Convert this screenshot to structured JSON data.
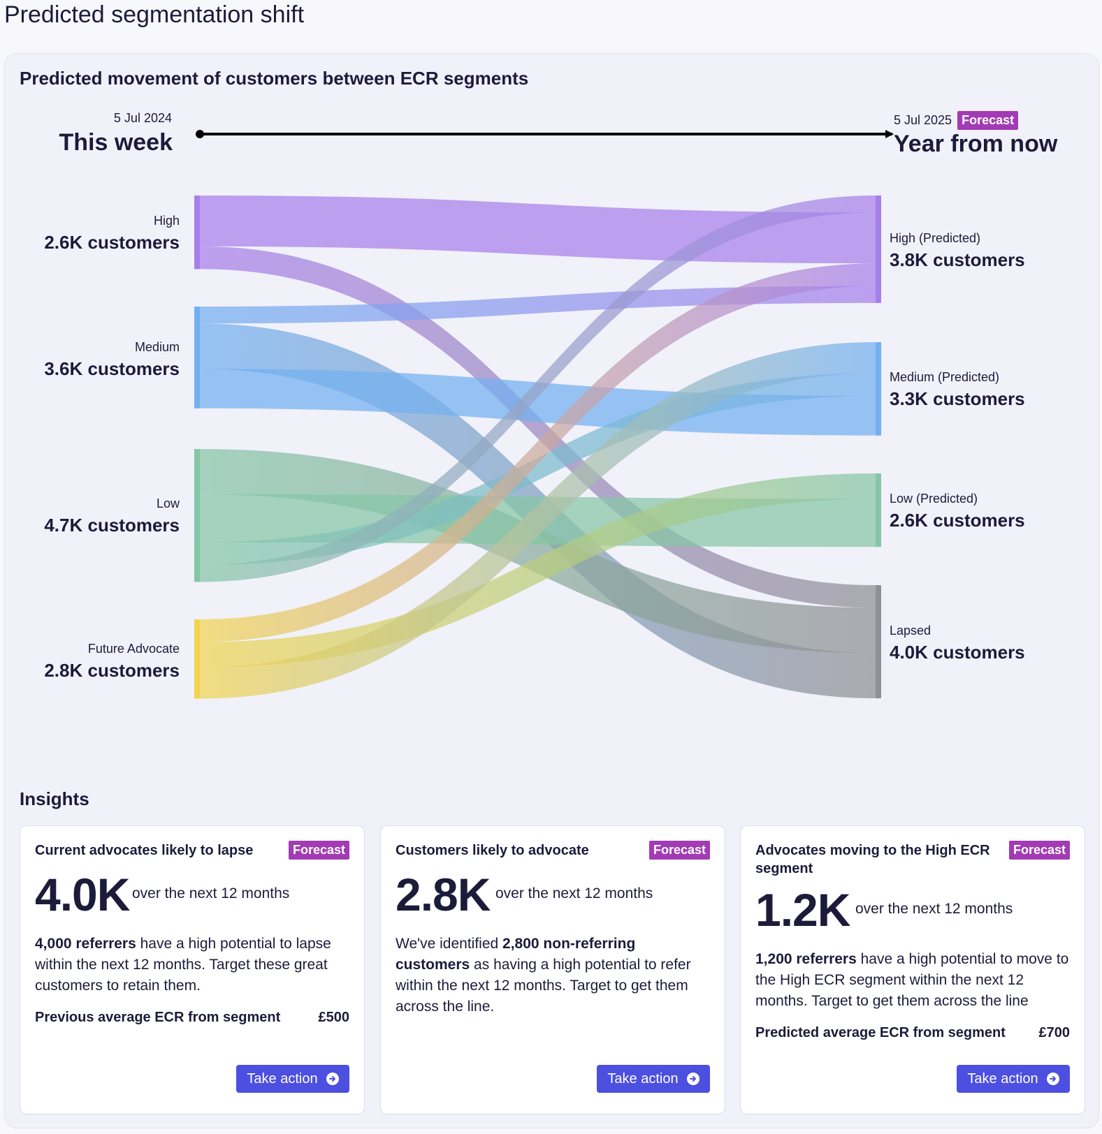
{
  "page": {
    "title": "Predicted segmentation shift"
  },
  "card": {
    "heading": "Predicted movement of customers between ECR segments"
  },
  "timeline": {
    "start_date": "5 Jul 2024",
    "start_label": "This week",
    "end_date": "5 Jul 2025",
    "end_badge": "Forecast",
    "end_label": "Year from now"
  },
  "colors": {
    "high": "#a77fea",
    "medium": "#73b0f0",
    "low": "#86c6a6",
    "future_advocate": "#f1d452",
    "lapsed": "#8f9094",
    "forecast_badge": "#a23bb4",
    "button": "#4c4fe0"
  },
  "chart_data": {
    "type": "sankey",
    "source_nodes": [
      {
        "id": "high",
        "label": "High",
        "count": "2.6K customers",
        "value": 2600
      },
      {
        "id": "medium",
        "label": "Medium",
        "count": "3.6K customers",
        "value": 3600
      },
      {
        "id": "low",
        "label": "Low",
        "count": "4.7K customers",
        "value": 4700
      },
      {
        "id": "future",
        "label": "Future Advocate",
        "count": "2.8K customers",
        "value": 2800
      }
    ],
    "target_nodes": [
      {
        "id": "high_p",
        "label": "High (Predicted)",
        "count": "3.8K customers",
        "value": 3800
      },
      {
        "id": "medium_p",
        "label": "Medium (Predicted)",
        "count": "3.3K customers",
        "value": 3300
      },
      {
        "id": "low_p",
        "label": "Low (Predicted)",
        "count": "2.6K customers",
        "value": 2600
      },
      {
        "id": "lapsed",
        "label": "Lapsed",
        "count": "4.0K customers",
        "value": 4000
      }
    ],
    "links": [
      {
        "source": "high",
        "target": "high_p",
        "value": 1800
      },
      {
        "source": "high",
        "target": "lapsed",
        "value": 800
      },
      {
        "source": "medium",
        "target": "high_p",
        "value": 600
      },
      {
        "source": "medium",
        "target": "lapsed",
        "value": 1600
      },
      {
        "source": "medium",
        "target": "medium_p",
        "value": 1400
      },
      {
        "source": "low",
        "target": "lapsed",
        "value": 1600
      },
      {
        "source": "low",
        "target": "low_p",
        "value": 1700
      },
      {
        "source": "low",
        "target": "medium_p",
        "value": 800
      },
      {
        "source": "low",
        "target": "high_p",
        "value": 600
      },
      {
        "source": "future",
        "target": "high_p",
        "value": 800
      },
      {
        "source": "future",
        "target": "low_p",
        "value": 900
      },
      {
        "source": "future",
        "target": "medium_p",
        "value": 1100
      }
    ]
  },
  "insights": {
    "heading": "Insights",
    "cards": [
      {
        "title": "Current advocates likely to lapse",
        "badge": "Forecast",
        "value": "4.0K",
        "period": "over the next 12 months",
        "desc_bold1": "4,000 referrers",
        "desc_text1": " have a high potential to lapse within the next 12 months. Target these great customers to retain them.",
        "stat_label": "Previous average ECR from segment",
        "stat_value": "£500",
        "button": "Take action"
      },
      {
        "title": "Customers likely to advocate",
        "badge": "Forecast",
        "value": "2.8K",
        "period": "over the next 12 months",
        "desc_text0": "We've identified ",
        "desc_bold1": "2,800 non-referring customers",
        "desc_text1": " as having a high potential to refer within the next 12 months. Target to get them across the line.",
        "button": "Take action"
      },
      {
        "title": "Advocates moving to the High ECR segment",
        "badge": "Forecast",
        "value": "1.2K",
        "period": "over the next 12 months",
        "desc_bold1": "1,200 referrers",
        "desc_text1": " have a high potential to move to the High ECR segment within the next 12 months. Target to get them across the line",
        "stat_label": "Predicted average ECR from segment",
        "stat_value": "£700",
        "button": "Take action"
      }
    ]
  }
}
